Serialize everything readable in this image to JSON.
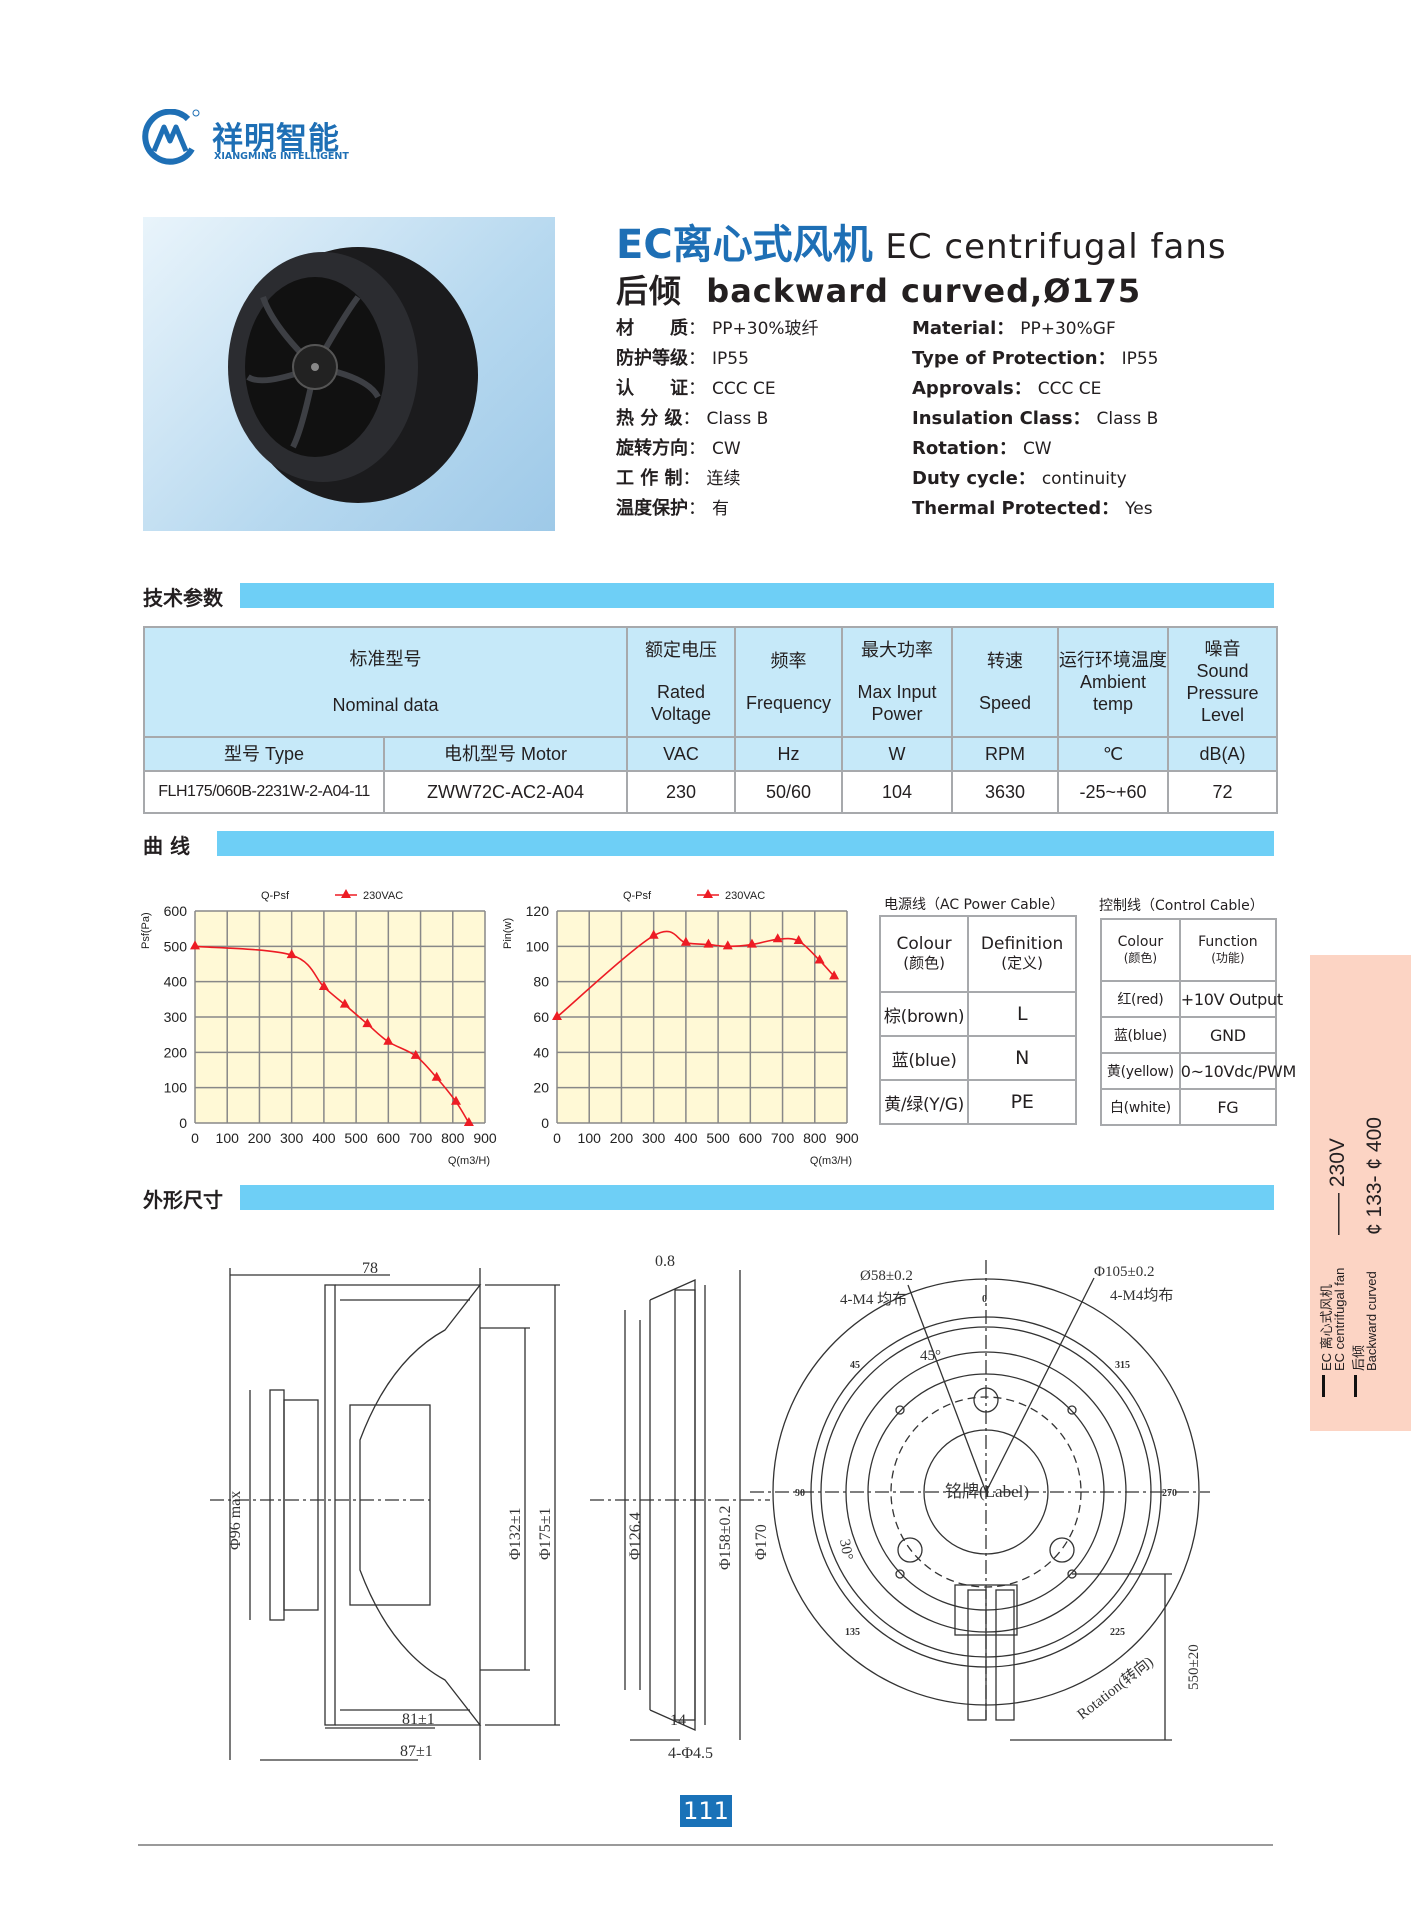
{
  "brand": {
    "name_cn": "祥明智能",
    "name_en": "XIANGMING INTELLIGENT",
    "color": "#1e6fb5"
  },
  "product": {
    "title_cn": "EC离心式风机",
    "title_en": "EC centrifugal fans",
    "subtitle_cn": "后倾",
    "subtitle_en": "backward curved,Ø175"
  },
  "specs_cn": [
    {
      "label": "材　　质",
      "value": "PP+30%玻纤"
    },
    {
      "label": "防护等级",
      "value": "IP55"
    },
    {
      "label": "认　　证",
      "value": "CCC  CE"
    },
    {
      "label": "热 分 级",
      "value": "Class  B"
    },
    {
      "label": "旋转方向",
      "value": "CW"
    },
    {
      "label": "工 作 制",
      "value": "连续"
    },
    {
      "label": "温度保护",
      "value": "有"
    }
  ],
  "specs_en": [
    {
      "label": "Material：",
      "value": "PP+30%GF"
    },
    {
      "label": "Type of Protection：",
      "value": "IP55"
    },
    {
      "label": "Approvals：",
      "value": "CCC  CE"
    },
    {
      "label": "Insulation Class：",
      "value": "Class  B"
    },
    {
      "label": "Rotation：",
      "value": "CW"
    },
    {
      "label": "Duty cycle：",
      "value": "continuity"
    },
    {
      "label": "Thermal  Protected：",
      "value": "Yes"
    }
  ],
  "sections": {
    "tech": "技术参数",
    "curves": "曲  线",
    "dims": "外形尺寸"
  },
  "main_table": {
    "header": [
      {
        "cn": "标准型号",
        "en": "Nominal  data"
      },
      {
        "cn": "额定电压",
        "en": "Rated Voltage"
      },
      {
        "cn": "频率",
        "en": "Frequency"
      },
      {
        "cn": "最大功率",
        "en": "Max Input Power"
      },
      {
        "cn": "转速",
        "en": "Speed"
      },
      {
        "cn": "运行环境温度",
        "en": "Ambient temp"
      },
      {
        "cn": "噪音",
        "en": "Sound Pressure Level"
      }
    ],
    "units": [
      "型号  Type",
      "电机型号  Motor",
      "VAC",
      "Hz",
      "W",
      "RPM",
      "℃",
      "dB(A)"
    ],
    "rows": [
      [
        "FLH175/060B-2231W-2-A04-11",
        "ZWW72C-AC2-A04",
        "230",
        "50/60",
        "104",
        "3630",
        "-25~+60",
        "72"
      ]
    ]
  },
  "chart_data": [
    {
      "type": "line",
      "title": "Q-Psf",
      "ylabel": "Psf(Pa)",
      "xlabel": "Q(m3/H)",
      "xlim": [
        0,
        900
      ],
      "ylim": [
        0,
        600
      ],
      "xticks": [
        "0",
        "100",
        "200",
        "300",
        "400",
        "500",
        "600",
        "700",
        "800",
        "900"
      ],
      "yticks": [
        "0",
        "100",
        "200",
        "300",
        "400",
        "500",
        "600"
      ],
      "grid": true,
      "legend": "top",
      "background": "#fff9d6",
      "series": [
        {
          "name": "230VAC",
          "color": "#ed1c24",
          "marker": "triangle",
          "x": [
            0,
            300,
            400,
            465,
            535,
            600,
            685,
            750,
            810,
            850
          ],
          "y": [
            500,
            475,
            385,
            335,
            280,
            230,
            190,
            128,
            60,
            0
          ]
        }
      ]
    },
    {
      "type": "line",
      "title": "Q-Psf",
      "ylabel": "Pin(w)",
      "xlabel": "Q(m3/H)",
      "xlim": [
        0,
        900
      ],
      "ylim": [
        0,
        120
      ],
      "xticks": [
        "0",
        "100",
        "200",
        "300",
        "400",
        "500",
        "600",
        "700",
        "800",
        "900"
      ],
      "yticks": [
        "0",
        "20",
        "40",
        "60",
        "80",
        "100",
        "120"
      ],
      "grid": true,
      "legend": "top",
      "background": "#fff9d6",
      "series": [
        {
          "name": "230VAC",
          "color": "#ed1c24",
          "marker": "triangle",
          "x": [
            0,
            300,
            400,
            470,
            530,
            605,
            685,
            750,
            815,
            860
          ],
          "y": [
            60,
            106,
            102,
            101,
            100,
            101,
            104,
            103,
            92,
            83
          ]
        }
      ]
    }
  ],
  "ac_cable": {
    "caption": "电源线（AC Power Cable）",
    "header": [
      [
        "Colour",
        "(颜色)"
      ],
      [
        "Definition",
        "(定义)"
      ]
    ],
    "rows": [
      [
        "棕(brown)",
        "L"
      ],
      [
        "蓝(blue)",
        "N"
      ],
      [
        "黄/绿(Y/G)",
        "PE"
      ]
    ]
  },
  "control_cable": {
    "caption": "控制线（Control Cable）",
    "header": [
      [
        "Colour",
        "(颜色)"
      ],
      [
        "Function",
        "(功能)"
      ]
    ],
    "rows": [
      [
        "红(red)",
        "+10V Output"
      ],
      [
        "蓝(blue)",
        "GND"
      ],
      [
        "黄(yellow)",
        "0~10Vdc/PWM"
      ],
      [
        "白(white)",
        "FG"
      ]
    ]
  },
  "drawing": {
    "side": {
      "d78": "78",
      "d96": "Φ96 max",
      "d132": "Φ132±1",
      "d175": "Φ175±1",
      "d81": "81±1",
      "d87": "87±1"
    },
    "mid": {
      "d08": "0.8",
      "d126": "Φ126.4",
      "d158": "Φ158±0.2",
      "d170": "Φ170",
      "d14": "14",
      "holes": "4-Φ4.5"
    },
    "front": {
      "d58": "Ø58±0.2",
      "m4a": "4-M4 均布",
      "d105": "Φ105±0.2",
      "m4b": "4-M4均布",
      "a45": "45°",
      "a30": "30°",
      "label": "铭牌(Label)",
      "rotation": "Rotation(转向)",
      "cable": "550±20",
      "deg0": "0",
      "deg45": "45",
      "deg90": "90",
      "deg135": "135",
      "deg225": "225",
      "deg270": "270",
      "deg315": "315"
    }
  },
  "page_number": "111",
  "side_tab": {
    "line1": "EC 离心式风机",
    "line2": "EC centrifugal fan",
    "line3": "后倾",
    "line4": "Backward curved",
    "voltage": "—— 230V",
    "range": "¢ 133- ¢ 400",
    "color": "#fcd4c4"
  }
}
